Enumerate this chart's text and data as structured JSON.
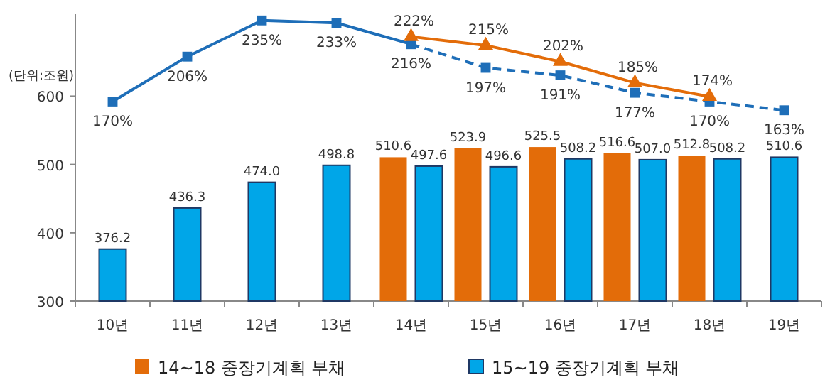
{
  "chart_data": {
    "type": "bar",
    "ylabel": "(단위:조원)",
    "categories": [
      "10년",
      "11년",
      "12년",
      "13년",
      "14년",
      "15년",
      "16년",
      "17년",
      "18년",
      "19년"
    ],
    "ylim": [
      300,
      720
    ],
    "yticks": [
      300,
      400,
      500,
      600
    ],
    "y2lim": [
      10,
      240
    ],
    "legend": "bottom",
    "grid": false,
    "series": [
      {
        "name": "14~18 중장기계획 부채",
        "color": "#e36c09",
        "values": [
          null,
          null,
          null,
          null,
          510.6,
          523.9,
          525.5,
          516.6,
          512.8,
          null
        ],
        "value_labels": [
          null,
          null,
          null,
          null,
          "510.6",
          "523.9",
          "525.5",
          "516.6",
          "512.8",
          null
        ]
      },
      {
        "name": "15~19 중장기계획 부채",
        "color": "#00a6e8",
        "values": [
          376.2,
          436.3,
          474.0,
          498.8,
          497.6,
          496.6,
          508.2,
          507.0,
          508.2,
          510.6
        ],
        "value_labels": [
          "376.2",
          "436.3",
          "474.0",
          "498.8",
          "497.6",
          "496.6",
          "508.2",
          "507.0",
          "508.2",
          "510.6"
        ]
      },
      {
        "type": "line",
        "axis": "y2",
        "color": "#1e6eb8",
        "marker": "square",
        "line_style": "solid",
        "values": [
          170,
          206,
          235,
          233,
          216,
          null,
          null,
          null,
          null,
          null
        ],
        "value_labels": [
          "170%",
          "206%",
          "235%",
          "233%",
          "216%",
          null,
          null,
          null,
          null,
          null
        ]
      },
      {
        "type": "line",
        "axis": "y2",
        "color": "#1e6eb8",
        "marker": "square",
        "line_style": "dashed",
        "values": [
          null,
          null,
          null,
          null,
          216,
          197,
          191,
          177,
          170,
          163
        ],
        "value_labels": [
          null,
          null,
          null,
          null,
          null,
          "197%",
          "191%",
          "177%",
          "170%",
          "163%"
        ]
      },
      {
        "type": "line",
        "axis": "y2",
        "color": "#e36c09",
        "marker": "triangle",
        "line_style": "solid",
        "values": [
          null,
          null,
          null,
          null,
          222,
          215,
          202,
          185,
          174,
          null
        ],
        "value_labels": [
          null,
          null,
          null,
          null,
          "222%",
          "215%",
          "202%",
          "185%",
          "174%",
          null
        ]
      }
    ]
  }
}
